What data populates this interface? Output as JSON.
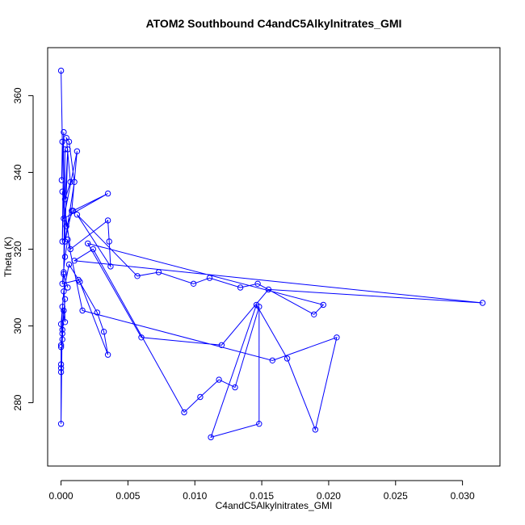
{
  "chart_data": {
    "type": "line",
    "title": "ATOM2 Southbound C4andC5Alkylnitrates_GMI",
    "xlabel": "C4andC5Alkylnitrates_GMI",
    "ylabel": "Theta (K)",
    "xlim": [
      -0.001,
      0.0328
    ],
    "ylim": [
      263.5,
      372.5
    ],
    "x_ticks": [
      "0.000",
      "0.005",
      "0.010",
      "0.015",
      "0.020",
      "0.025",
      "0.030"
    ],
    "y_ticks": [
      "280",
      "300",
      "320",
      "340",
      "360"
    ],
    "grid": false,
    "legend": "none",
    "line_color": "#0000ff",
    "marker": "open-circle",
    "series": [
      {
        "x": [
          0.0,
          0.0001,
          5e-05,
          0.0002,
          0.0001,
          0.0003,
          0.0002,
          0.0005,
          0.0003,
          0.0007,
          0.0004,
          0.0006,
          0.001,
          0.0003,
          0.0008,
          0.0012,
          0.0002,
          0.0035,
          0.0009,
          0.0004,
          0.0001,
          0.0007,
          0.0035,
          0.0036,
          0.0037,
          0.0012,
          0.0057,
          0.0073,
          0.0099,
          0.0111,
          0.0134,
          0.0147,
          0.0189,
          0.0196,
          0.002,
          0.006,
          0.012,
          0.0155,
          0.0315,
          0.001,
          0.0024,
          0.0092,
          0.0104,
          0.0118,
          0.013,
          0.0148,
          0.0148,
          0.0112,
          0.0146,
          0.0169,
          0.019,
          0.0206,
          0.0158,
          0.0016,
          0.0005,
          0.0003,
          0.0001,
          0.0013,
          0.0027,
          0.0032,
          0.0035,
          0.0014,
          0.0006,
          0.0002,
          0.0,
          0.0001,
          0.0,
          0.0003,
          0.0001,
          0.0,
          0.0002,
          0.0,
          0.0001,
          0.0,
          0.0,
          0.0,
          0.0001,
          0.0003,
          0.0002,
          0.0005
        ],
        "y": [
          366.5,
          348,
          338,
          350.5,
          322,
          346,
          314,
          346,
          333,
          337.5,
          349,
          348,
          337.5,
          322,
          330,
          345.5,
          328,
          334.5,
          330,
          326,
          335,
          320,
          327.5,
          322,
          315.5,
          329,
          313,
          314,
          311,
          312.5,
          310,
          311,
          303,
          305.5,
          321.5,
          297,
          295,
          309.5,
          306,
          317,
          320,
          277.5,
          281.5,
          286,
          284,
          305,
          274.5,
          271,
          305.5,
          291.5,
          273,
          297,
          291,
          304,
          322.5,
          318,
          311,
          312,
          303.5,
          298.5,
          292.5,
          311.5,
          316,
          309,
          300.5,
          296.5,
          295,
          307,
          298,
          290,
          304,
          289,
          299,
          288,
          294.5,
          274.5,
          305,
          301,
          313.5,
          310
        ]
      }
    ]
  }
}
